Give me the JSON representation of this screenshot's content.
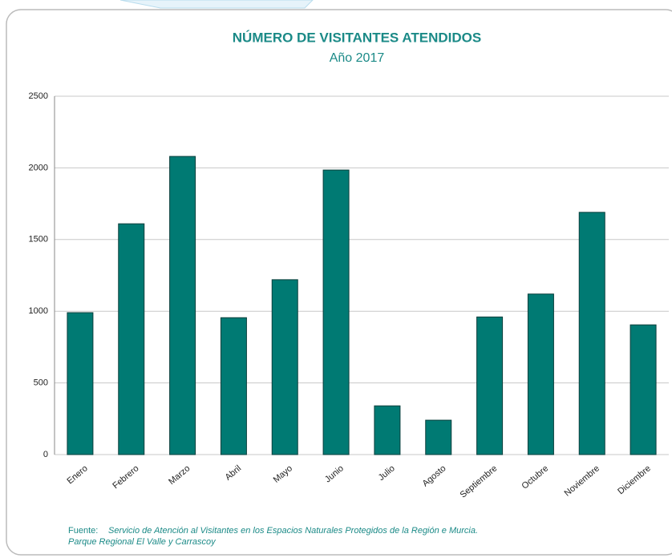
{
  "chart_data": {
    "type": "bar",
    "title": "NÚMERO DE VISITANTES ATENDIDOS",
    "subtitle": "Año 2017",
    "categories": [
      "Enero",
      "Febrero",
      "Marzo",
      "Abril",
      "Mayo",
      "Junio",
      "Julio",
      "Agosto",
      "Septiembre",
      "Octubre",
      "Noviembre",
      "Diciembre"
    ],
    "values": [
      990,
      1610,
      2080,
      955,
      1220,
      1985,
      340,
      240,
      960,
      1120,
      1690,
      905
    ],
    "color": "#007a73",
    "ylim": [
      0,
      2500
    ],
    "yticks": [
      0,
      500,
      1000,
      1500,
      2000,
      2500
    ],
    "grid": true,
    "source_label": "Fuente:",
    "source_lines": [
      "Servicio de Atención al Visitantes en los Espacios Naturales Protegidos de la Región e Murcia.",
      "Parque Regional El Valle y Carrascoy"
    ]
  }
}
